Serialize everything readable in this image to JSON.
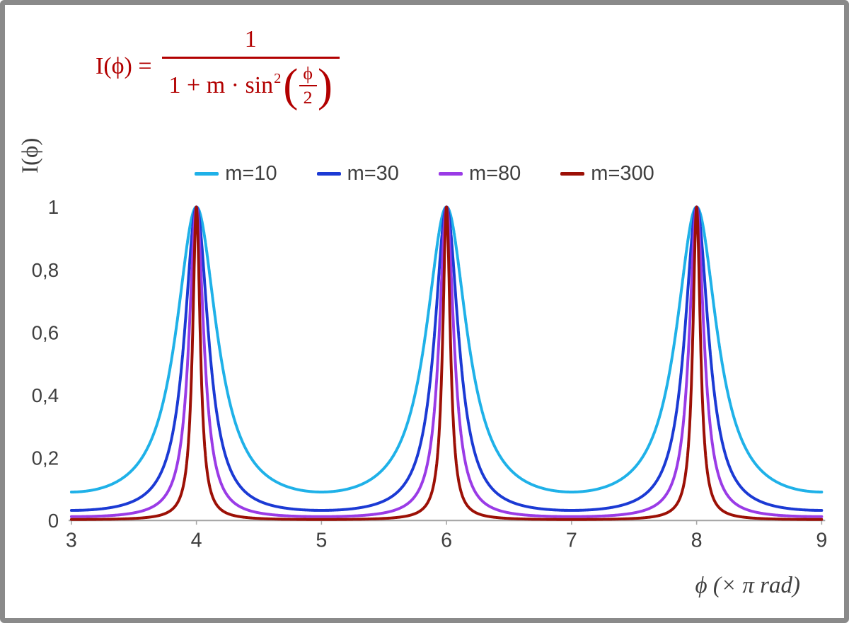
{
  "frame": {
    "border_color": "#8a8a8a",
    "background": "#ffffff"
  },
  "colors": {
    "axis": "#a6a6a6",
    "text": "#3f3f3f"
  },
  "formula": {
    "color": "#b20000",
    "lhs": "I(ϕ) =",
    "numerator": "1",
    "den_prefix": "1 + m · sin",
    "den_sup": "2",
    "paren_open": "(",
    "inner_num": "ϕ",
    "inner_den": "2",
    "paren_close": ")"
  },
  "axes": {
    "x": {
      "label": "ϕ  (× π rad)",
      "ticks": [
        "3",
        "4",
        "5",
        "6",
        "7",
        "8",
        "9"
      ],
      "values": [
        3,
        4,
        5,
        6,
        7,
        8,
        9
      ]
    },
    "y": {
      "label": "I(ϕ)",
      "ticks": [
        "0",
        "0,2",
        "0,4",
        "0,6",
        "0,8",
        "1"
      ],
      "values": [
        0,
        0.2,
        0.4,
        0.6,
        0.8,
        1
      ]
    }
  },
  "chart_data": {
    "type": "line",
    "title": "",
    "xlabel": "ϕ (× π rad)",
    "ylabel": "I(ϕ)",
    "x_range": [
      3,
      9
    ],
    "ylim": [
      0,
      1
    ],
    "x_unit": "π rad",
    "formula": "I(ϕ) = 1 / (1 + m · sin²(ϕ/2)), with ϕ = x·π",
    "peaks_at_x": [
      4,
      6,
      8
    ],
    "peak_value": 1,
    "values_at_x3": {
      "m=10": 0.091,
      "m=30": 0.032,
      "m=80": 0.012,
      "m=300": 0.003
    },
    "grid": "off",
    "legend_position": "top-center",
    "series": [
      {
        "name": "m=10",
        "m": 10,
        "color": "#1fb1e8"
      },
      {
        "name": "m=30",
        "m": 30,
        "color": "#1b3ad4"
      },
      {
        "name": "m=80",
        "m": 80,
        "color": "#9a3be6"
      },
      {
        "name": "m=300",
        "m": 300,
        "color": "#9c1006"
      }
    ]
  }
}
